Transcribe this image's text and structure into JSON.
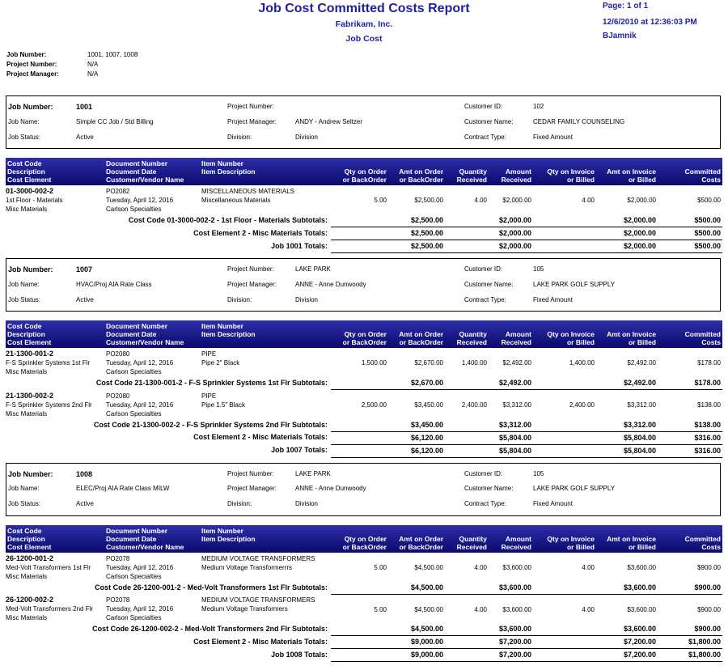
{
  "header": {
    "title": "Job Cost Committed Costs Report",
    "company": "Fabrikam, Inc.",
    "module": "Job Cost",
    "page": "Page: 1 of 1",
    "datetime": "12/6/2010 at 12:36:03 PM",
    "user": "BJamnik"
  },
  "filters": [
    {
      "label": "Job Number:",
      "value": "1001, 1007, 1008"
    },
    {
      "label": "Project Number:",
      "value": "N/A"
    },
    {
      "label": "Project Manager:",
      "value": "N/A"
    }
  ],
  "columns": [
    [
      "Cost Code",
      "Description",
      "Cost Element"
    ],
    [
      "Document Number",
      "Document Date",
      "Customer/Vendor Name"
    ],
    [
      "Item Number",
      "Item Description"
    ],
    [
      "Qty on Order",
      "or BackOrder"
    ],
    [
      "Amt on Order",
      "or BackOrder"
    ],
    [
      "Quantity",
      "Received"
    ],
    [
      "Amount",
      "Received"
    ],
    [
      "Qty on Invoice",
      "or Billed"
    ],
    [
      "Amt on Invoice",
      "or Billed"
    ],
    [
      "Committed",
      "Costs"
    ]
  ],
  "jobs": [
    {
      "info": [
        {
          "label": "Job Number:",
          "value": "1001"
        },
        {
          "label": "Project Number:"
        },
        {
          "label": "Customer ID:",
          "value": "102"
        },
        {
          "label": "Job Name:",
          "value": "Simple CC Job / Std Billing"
        },
        {
          "label": "Project Manager:",
          "value": "ANDY - Andrew Seltzer"
        },
        {
          "label": "Customer Name:",
          "value": "CEDAR FAMILY COUNSELING"
        },
        {
          "label": "Job Status:",
          "value": "Active"
        },
        {
          "label": "Division:",
          "value": "Division"
        },
        {
          "label": "Contract Type:",
          "value": "Fixed Amount"
        }
      ],
      "groups": [
        {
          "items": [
            {
              "code": "01-3000-002-2",
              "description": "1st Floor - Materials",
              "element": "Misc Materials",
              "doc": "PO2082",
              "date": "Tuesday, April 12, 2016",
              "vendor": "Carlson Specialties",
              "item_number": "MISCELLANEOUS MATERIALS",
              "item_description": "Miscellaneous Materials",
              "qty_order": "5.00",
              "amt_order": "$2,500.00",
              "qty_received": "4.00",
              "amt_received": "$2,000.00",
              "qty_invoice": "4.00",
              "amt_invoice": "$2,000.00",
              "committed": "$500.00"
            }
          ],
          "subtotal": {
            "label": "Cost Code 01-3000-002-2 - 1st Floor - Materials Subtotals:",
            "amt_order": "$2,500.00",
            "amt_received": "$2,000.00",
            "amt_invoice": "$2,000.00",
            "committed": "$500.00"
          }
        }
      ],
      "totals": [
        {
          "label": "Cost Element 2 - Misc Materials Totals:",
          "amt_order": "$2,500.00",
          "amt_received": "$2,000.00",
          "amt_invoice": "$2,000.00",
          "committed": "$500.00"
        },
        {
          "label": "Job 1001 Totals:",
          "amt_order": "$2,500.00",
          "amt_received": "$2,000.00",
          "amt_invoice": "$2,000.00",
          "committed": "$500.00"
        }
      ]
    },
    {
      "info": [
        {
          "label": "Job Number:",
          "value": "1007"
        },
        {
          "label": "Project Number:",
          "value": "LAKE PARK"
        },
        {
          "label": "Customer ID:",
          "value": "105"
        },
        {
          "label": "Job Name:",
          "value": "HVAC/Proj AIA Rate Class"
        },
        {
          "label": "Project Manager:",
          "value": "ANNE - Anne Dunwoody"
        },
        {
          "label": "Customer Name:",
          "value": "LAKE PARK GOLF SUPPLY"
        },
        {
          "label": "Job Status:",
          "value": "Active"
        },
        {
          "label": "Division:",
          "value": "Division"
        },
        {
          "label": "Contract Type:",
          "value": "Fixed Amount"
        }
      ],
      "groups": [
        {
          "items": [
            {
              "code": "21-1300-001-2",
              "description": "F-S Sprinkler Systems 1st Flr",
              "element": "Misc Materials",
              "doc": "PO2080",
              "date": "Tuesday, April 12, 2016",
              "vendor": "Carlson Specialties",
              "item_number": "PIPE",
              "item_description": "Pipe 2\" Black",
              "qty_order": "1,500.00",
              "amt_order": "$2,670.00",
              "qty_received": "1,400.00",
              "amt_received": "$2,492.00",
              "qty_invoice": "1,400.00",
              "amt_invoice": "$2,492.00",
              "committed": "$178.00"
            }
          ],
          "subtotal": {
            "label": "Cost Code 21-1300-001-2 - F-S Sprinkler Systems 1st Flr Subtotals:",
            "amt_order": "$2,670.00",
            "amt_received": "$2,492.00",
            "amt_invoice": "$2,492.00",
            "committed": "$178.00"
          }
        },
        {
          "items": [
            {
              "code": "21-1300-002-2",
              "description": "F-S Sprinkler Systems 2nd Flr",
              "element": "Misc Materials",
              "doc": "PO2080",
              "date": "Tuesday, April 12, 2016",
              "vendor": "Carlson Specialties",
              "item_number": "PIPE",
              "item_description": "Pipe 1.5\" Black",
              "qty_order": "2,500.00",
              "amt_order": "$3,450.00",
              "qty_received": "2,400.00",
              "amt_received": "$3,312.00",
              "qty_invoice": "2,400.00",
              "amt_invoice": "$3,312.00",
              "committed": "$138.00"
            }
          ],
          "subtotal": {
            "label": "Cost Code 21-1300-002-2 - F-S Sprinkler Systems 2nd Flr Subtotals:",
            "amt_order": "$3,450.00",
            "amt_received": "$3,312.00",
            "amt_invoice": "$3,312.00",
            "committed": "$138.00"
          }
        }
      ],
      "totals": [
        {
          "label": "Cost Element 2 - Misc Materials Totals:",
          "amt_order": "$6,120.00",
          "amt_received": "$5,804.00",
          "amt_invoice": "$5,804.00",
          "committed": "$316.00"
        },
        {
          "label": "Job 1007 Totals:",
          "amt_order": "$6,120.00",
          "amt_received": "$5,804.00",
          "amt_invoice": "$5,804.00",
          "committed": "$316.00"
        }
      ]
    },
    {
      "info": [
        {
          "label": "Job Number:",
          "value": "1008"
        },
        {
          "label": "Project Number:",
          "value": "LAKE PARK"
        },
        {
          "label": "Customer ID:",
          "value": "105"
        },
        {
          "label": "Job Name:",
          "value": "ELEC/Proj AIA Rate Class MILW"
        },
        {
          "label": "Project Manager:",
          "value": "ANNE - Anne Dunwoody"
        },
        {
          "label": "Customer Name:",
          "value": "LAKE PARK GOLF SUPPLY"
        },
        {
          "label": "Job Status:",
          "value": "Active"
        },
        {
          "label": "Division:",
          "value": "Division"
        },
        {
          "label": "Contract Type:",
          "value": "Fixed Amount"
        }
      ],
      "groups": [
        {
          "items": [
            {
              "code": "26-1200-001-2",
              "description": "Med-Volt Transformers 1st Flr",
              "element": "Misc Materials",
              "doc": "PO2078",
              "date": "Tuesday, April 12, 2016",
              "vendor": "Carlson Specialties",
              "item_number": "MEDIUM VOLTAGE TRANSFORMERS",
              "item_description": "Medium Voltage Transformerrrs",
              "qty_order": "5.00",
              "amt_order": "$4,500.00",
              "qty_received": "4.00",
              "amt_received": "$3,600.00",
              "qty_invoice": "4.00",
              "amt_invoice": "$3,600.00",
              "committed": "$900.00"
            }
          ],
          "subtotal": {
            "label": "Cost Code 26-1200-001-2 - Med-Volt Transformers 1st Flr Subtotals:",
            "amt_order": "$4,500.00",
            "amt_received": "$3,600.00",
            "amt_invoice": "$3,600.00",
            "committed": "$900.00"
          }
        },
        {
          "items": [
            {
              "code": "26-1200-002-2",
              "description": "Med-Volt Transformers 2nd Flr",
              "element": "Misc Materials",
              "doc": "PO2078",
              "date": "Tuesday, April 12, 2016",
              "vendor": "Carlson Specialties",
              "item_number": "MEDIUM VOLTAGE TRANSFORMERS",
              "item_description": "Medium Voltage Transformers",
              "qty_order": "5.00",
              "amt_order": "$4,500.00",
              "qty_received": "4.00",
              "amt_received": "$3,600.00",
              "qty_invoice": "4.00",
              "amt_invoice": "$3,600.00",
              "committed": "$900.00"
            }
          ],
          "subtotal": {
            "label": "Cost Code 26-1200-002-2 - Med-Volt Transformers 2nd Flr Subtotals:",
            "amt_order": "$4,500.00",
            "amt_received": "$3,600.00",
            "amt_invoice": "$3,600.00",
            "committed": "$900.00"
          }
        }
      ],
      "totals": [
        {
          "label": "Cost Element 2 - Misc Materials Totals:",
          "amt_order": "$9,000.00",
          "amt_received": "$7,200.00",
          "amt_invoice": "$7,200.00",
          "committed": "$1,800.00"
        },
        {
          "label": "Job 1008 Totals:",
          "amt_order": "$9,000.00",
          "amt_received": "$7,200.00",
          "amt_invoice": "$7,200.00",
          "committed": "$1,800.00"
        }
      ]
    }
  ]
}
